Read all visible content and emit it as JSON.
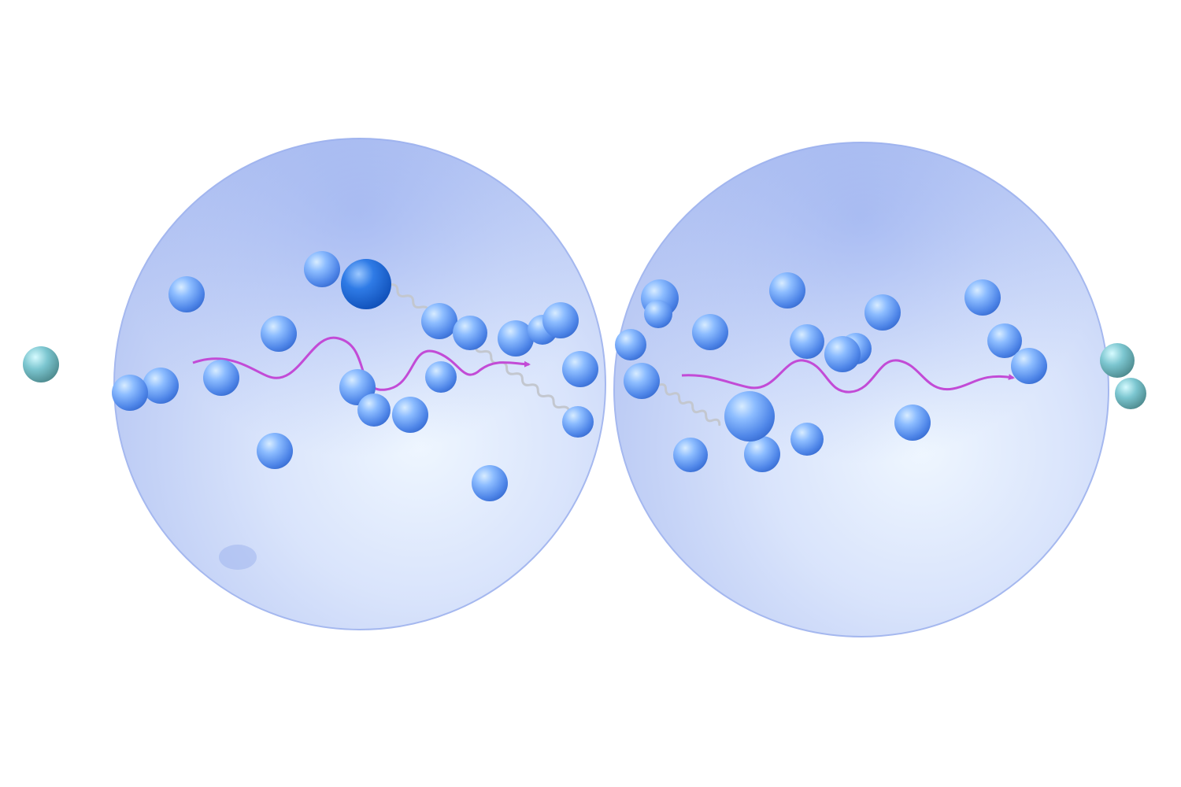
{
  "scene": {
    "background": "#ffffff",
    "sphere_fill": "#b7c8f6",
    "sphere_rim": "#9fb4ef",
    "particle_color": "#5b8ff0",
    "emitter_color": "#1f64d6",
    "edge_particle_color": "#6fb8c4",
    "wave_color": "#c24bd6",
    "spring_color": "#c8cbd2"
  }
}
